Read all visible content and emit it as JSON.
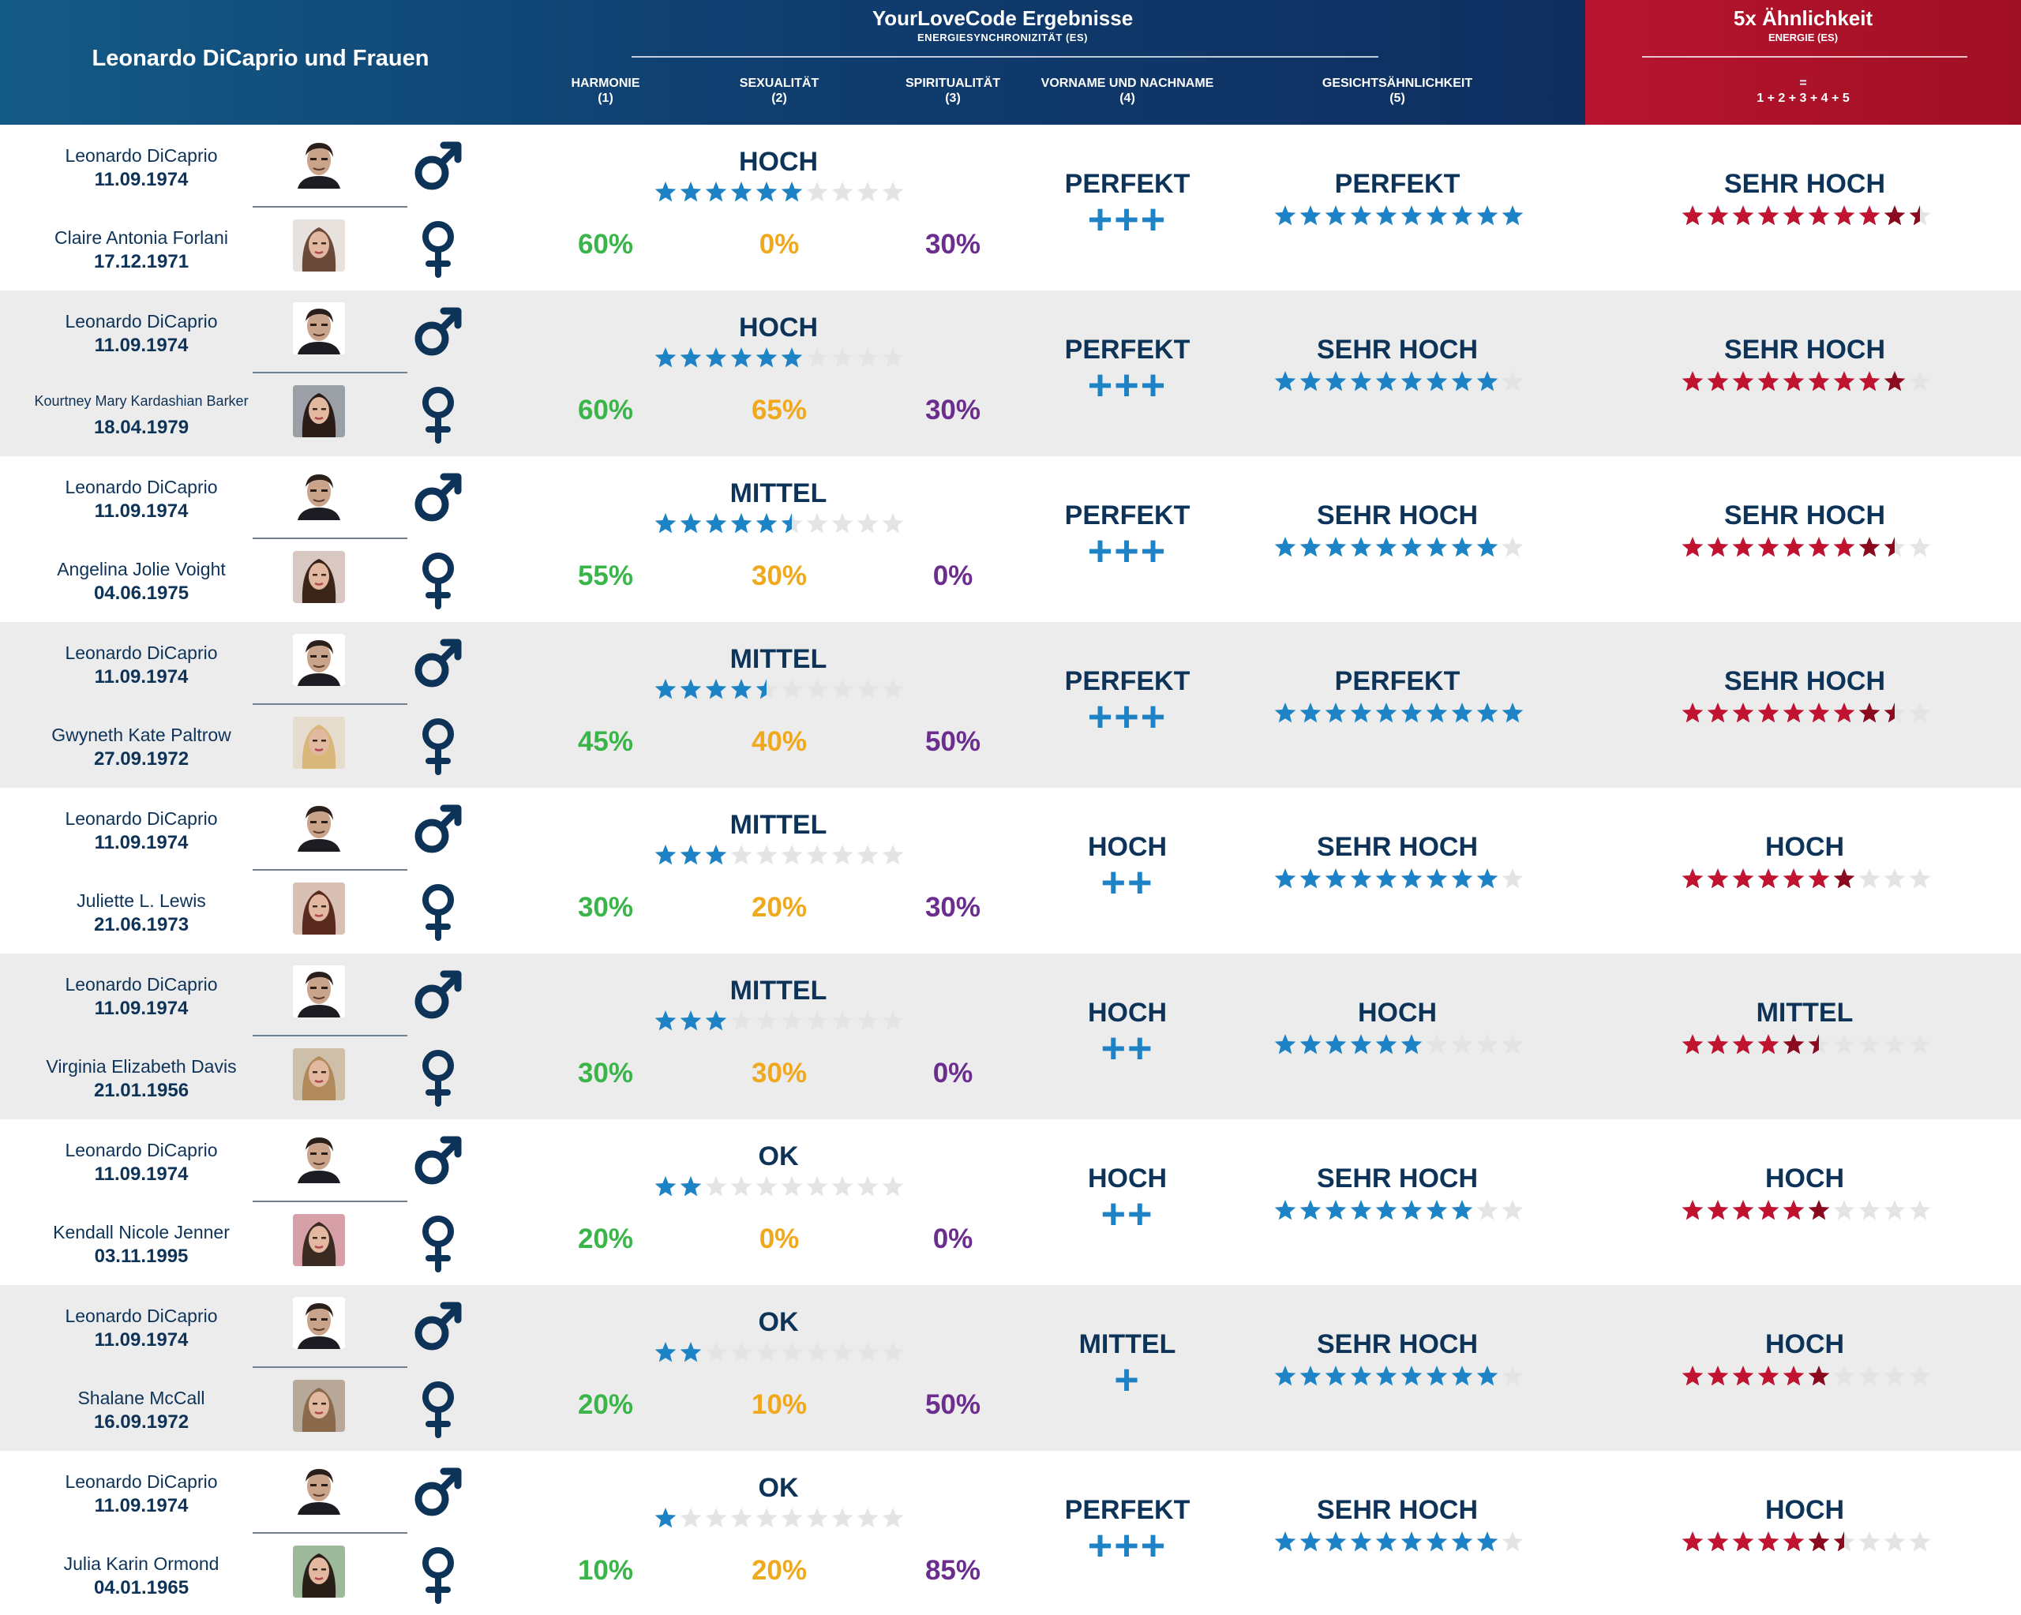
{
  "header": {
    "left_title": "Leonardo DiCaprio und Frauen",
    "main_title": "YourLoveCode Ergebnisse",
    "main_subtitle": "ENERGIESYNCHRONIZITÄT (ES)",
    "columns": [
      {
        "label": "HARMONIE",
        "num": "(1)"
      },
      {
        "label": "SEXUALITÄT",
        "num": "(2)"
      },
      {
        "label": "SPIRITUALITÄT",
        "num": "(3)"
      },
      {
        "label": "VORNAME UND NACHNAME",
        "num": "(4)"
      },
      {
        "label": "GESICHTSÄHNLICHKEIT",
        "num": "(5)"
      }
    ],
    "red_title": "5x Ähnlichkeit",
    "red_subtitle": "ENERGIE (ES)",
    "red_eq": "=",
    "red_formula": "1 + 2 + 3 + 4 + 5"
  },
  "colors": {
    "blue_star": "#1e83c6",
    "red_star_full": "#c0132f",
    "red_star_dark": "#8b0a1d",
    "grey_star": "#e4e4e4",
    "green": "#3ab54a",
    "orange": "#f0a81c",
    "purple": "#6b2e8e",
    "navy": "#0e3358"
  },
  "rows": [
    {
      "p1_name": "Leonardo DiCaprio",
      "p1_date": "11.09.1974",
      "p2_name": "Claire Antonia Forlani",
      "p2_date": "17.12.1971",
      "harmony": "60%",
      "sexuality": "0%",
      "spirituality": "30%",
      "sex_level": "HOCH",
      "sex_stars": 6,
      "name_level": "PERFEKT",
      "name_plus": "+++",
      "face_level": "PERFEKT",
      "face_stars": 10,
      "total_level": "SEHR HOCH",
      "total_stars": 9.5
    },
    {
      "p1_name": "Leonardo DiCaprio",
      "p1_date": "11.09.1974",
      "p2_name": "Kourtney Mary Kardashian Barker",
      "p2_date": "18.04.1979",
      "harmony": "60%",
      "sexuality": "65%",
      "spirituality": "30%",
      "sex_level": "HOCH",
      "sex_stars": 6,
      "name_level": "PERFEKT",
      "name_plus": "+++",
      "face_level": "SEHR HOCH",
      "face_stars": 9,
      "total_level": "SEHR HOCH",
      "total_stars": 9
    },
    {
      "p1_name": "Leonardo DiCaprio",
      "p1_date": "11.09.1974",
      "p2_name": "Angelina Jolie Voight",
      "p2_date": "04.06.1975",
      "harmony": "55%",
      "sexuality": "30%",
      "spirituality": "0%",
      "sex_level": "MITTEL",
      "sex_stars": 5.5,
      "name_level": "PERFEKT",
      "name_plus": "+++",
      "face_level": "SEHR HOCH",
      "face_stars": 9,
      "total_level": "SEHR HOCH",
      "total_stars": 8.5
    },
    {
      "p1_name": "Leonardo DiCaprio",
      "p1_date": "11.09.1974",
      "p2_name": "Gwyneth Kate Paltrow",
      "p2_date": "27.09.1972",
      "harmony": "45%",
      "sexuality": "40%",
      "spirituality": "50%",
      "sex_level": "MITTEL",
      "sex_stars": 4.5,
      "name_level": "PERFEKT",
      "name_plus": "+++",
      "face_level": "PERFEKT",
      "face_stars": 10,
      "total_level": "SEHR HOCH",
      "total_stars": 8.5
    },
    {
      "p1_name": "Leonardo DiCaprio",
      "p1_date": "11.09.1974",
      "p2_name": "Juliette L. Lewis",
      "p2_date": "21.06.1973",
      "harmony": "30%",
      "sexuality": "20%",
      "spirituality": "30%",
      "sex_level": "MITTEL",
      "sex_stars": 3,
      "name_level": "HOCH",
      "name_plus": "++",
      "face_level": "SEHR HOCH",
      "face_stars": 9,
      "total_level": "HOCH",
      "total_stars": 7
    },
    {
      "p1_name": "Leonardo DiCaprio",
      "p1_date": "11.09.1974",
      "p2_name": "Virginia Elizabeth Davis",
      "p2_date": "21.01.1956",
      "harmony": "30%",
      "sexuality": "30%",
      "spirituality": "0%",
      "sex_level": "MITTEL",
      "sex_stars": 3,
      "name_level": "HOCH",
      "name_plus": "++",
      "face_level": "HOCH",
      "face_stars": 6,
      "total_level": "MITTEL",
      "total_stars": 5.5
    },
    {
      "p1_name": "Leonardo DiCaprio",
      "p1_date": "11.09.1974",
      "p2_name": "Kendall Nicole Jenner",
      "p2_date": "03.11.1995",
      "harmony": "20%",
      "sexuality": "0%",
      "spirituality": "0%",
      "sex_level": "OK",
      "sex_stars": 2,
      "name_level": "HOCH",
      "name_plus": "++",
      "face_level": "SEHR HOCH",
      "face_stars": 8,
      "total_level": "HOCH",
      "total_stars": 6
    },
    {
      "p1_name": "Leonardo DiCaprio",
      "p1_date": "11.09.1974",
      "p2_name": "Shalane McCall",
      "p2_date": "16.09.1972",
      "harmony": "20%",
      "sexuality": "10%",
      "spirituality": "50%",
      "sex_level": "OK",
      "sex_stars": 2,
      "name_level": "MITTEL",
      "name_plus": "+",
      "face_level": "SEHR HOCH",
      "face_stars": 9,
      "total_level": "HOCH",
      "total_stars": 6
    },
    {
      "p1_name": "Leonardo DiCaprio",
      "p1_date": "11.09.1974",
      "p2_name": "Julia Karin Ormond",
      "p2_date": "04.01.1965",
      "harmony": "10%",
      "sexuality": "20%",
      "spirituality": "85%",
      "sex_level": "OK",
      "sex_stars": 1,
      "name_level": "PERFEKT",
      "name_plus": "+++",
      "face_level": "SEHR HOCH",
      "face_stars": 9,
      "total_level": "HOCH",
      "total_stars": 6.5
    }
  ]
}
